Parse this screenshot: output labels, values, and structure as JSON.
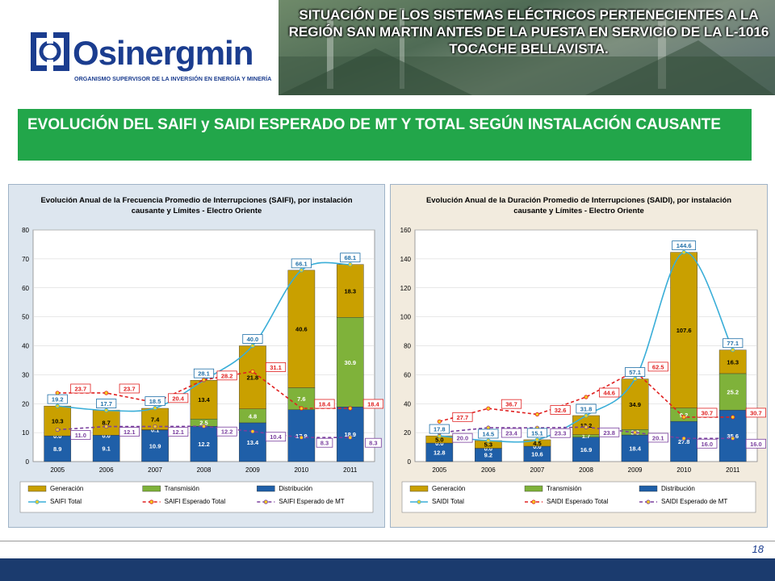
{
  "header": {
    "logo_name": "Osinergmin",
    "logo_subtitle": "ORGANISMO SUPERVISOR DE LA INVERSIÓN EN ENERGÍA Y MINERÍA",
    "banner_title": "SITUACIÓN DE LOS SISTEMAS ELÉCTRICOS PERTENECIENTES A LA REGIÓN SAN MARTIN ANTES DE LA PUESTA EN SERVICIO DE LA L-1016 TOCACHE BELLAVISTA."
  },
  "section_title": "EVOLUCIÓN DEL SAIFI y SAIDI ESPERADO DE MT  Y TOTAL SEGÚN INSTALACIÓN CAUSANTE",
  "page_number": "18",
  "colors": {
    "generacion": "#c9a000",
    "transmision": "#7fb23a",
    "distribucion": "#1f5fa8",
    "total_line": "#3aaed8",
    "esperado_total": "#e02020",
    "esperado_mt": "#7a3f9e",
    "section_bar": "#22a64a"
  },
  "chart_data": [
    {
      "type": "bar",
      "stacked": true,
      "title_line1": "Evolución Anual de la Frecuencia Promedio de Interrupciones (SAIFI), por instalación",
      "title_line2": "causante y Límites - Electro Oriente",
      "categories": [
        "2005",
        "2006",
        "2007",
        "2008",
        "2009",
        "2010",
        "2011"
      ],
      "ylim": [
        0,
        80
      ],
      "yticks": [
        0,
        10,
        20,
        30,
        40,
        50,
        60,
        70,
        80
      ],
      "series": [
        {
          "name": "Generación",
          "values": [
            10.3,
            8.7,
            7.4,
            13.4,
            21.8,
            40.6,
            18.3
          ]
        },
        {
          "name": "Transmisión",
          "values": [
            0.0,
            0.0,
            0.1,
            2.5,
            4.8,
            7.6,
            30.9
          ]
        },
        {
          "name": "Distribución",
          "values": [
            8.9,
            9.1,
            10.9,
            12.2,
            13.4,
            17.9,
            18.9
          ]
        }
      ],
      "lines": [
        {
          "name": "SAIFI Total",
          "values": [
            19.2,
            17.7,
            18.5,
            28.1,
            40.0,
            66.1,
            68.1
          ]
        },
        {
          "name": "SAIFI Esperado Total",
          "values": [
            23.7,
            23.7,
            20.4,
            28.2,
            31.1,
            18.4,
            18.4
          ]
        },
        {
          "name": "SAIFI Esperado de MT",
          "values": [
            11.0,
            12.1,
            12.1,
            12.2,
            10.4,
            8.3,
            8.3
          ]
        }
      ],
      "legend": [
        "Generación",
        "Transmisión",
        "Distribución",
        "SAIFI Total",
        "SAIFI Esperado Total",
        "SAIFI Esperado de MT"
      ],
      "legend_position": "bottom"
    },
    {
      "type": "bar",
      "stacked": true,
      "title_line1": "Evolución Anual de la Duración Promedio de Interrupciones (SAIDI), por instalación",
      "title_line2": "causante y Límites - Electro Oriente",
      "categories": [
        "2005",
        "2006",
        "2007",
        "2008",
        "2009",
        "2010",
        "2011"
      ],
      "ylim": [
        0,
        160
      ],
      "yticks": [
        0,
        20,
        40,
        60,
        80,
        100,
        120,
        140,
        160
      ],
      "series": [
        {
          "name": "Generación",
          "values": [
            5.0,
            5.3,
            4.5,
            13.2,
            34.9,
            107.6,
            16.3
          ]
        },
        {
          "name": "Transmisión",
          "values": [
            0.0,
            0.0,
            0.0,
            1.7,
            3.8,
            9.2,
            25.2
          ]
        },
        {
          "name": "Distribución",
          "values": [
            12.8,
            9.2,
            10.6,
            16.9,
            18.4,
            27.8,
            35.6
          ]
        }
      ],
      "lines": [
        {
          "name": "SAIDI Total",
          "values": [
            17.8,
            14.5,
            15.1,
            31.8,
            57.1,
            144.6,
            77.1
          ]
        },
        {
          "name": "SAIDI Esperado Total",
          "values": [
            27.7,
            36.7,
            32.6,
            44.6,
            62.5,
            30.7,
            30.7
          ]
        },
        {
          "name": "SAIDI Esperado de MT",
          "values": [
            20.0,
            23.4,
            23.3,
            23.8,
            20.1,
            16.0,
            16.0
          ]
        }
      ],
      "legend": [
        "Generación",
        "Transmisión",
        "Distribución",
        "SAIDI Total",
        "SAIDI Esperado Total",
        "SAIDI Esperado de MT"
      ],
      "legend_position": "bottom"
    }
  ]
}
